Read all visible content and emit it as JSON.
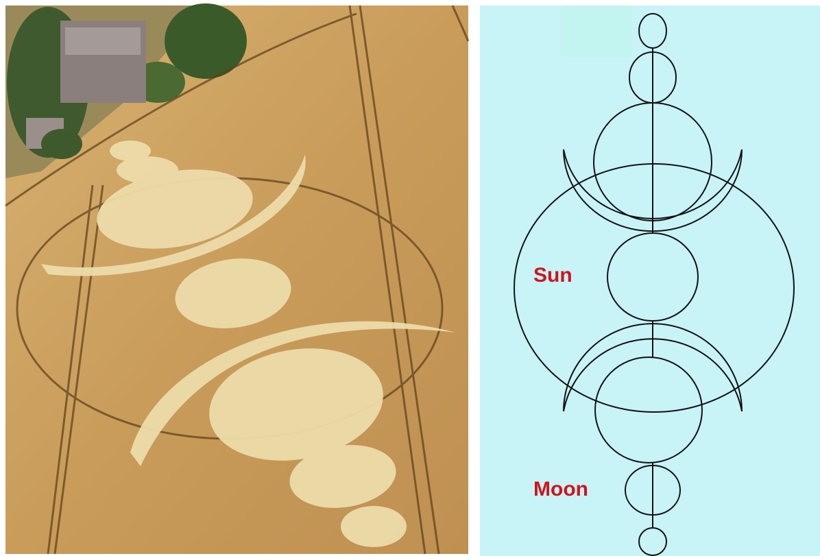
{
  "labels": {
    "sun": "Sun",
    "moon": "Moon"
  }
}
